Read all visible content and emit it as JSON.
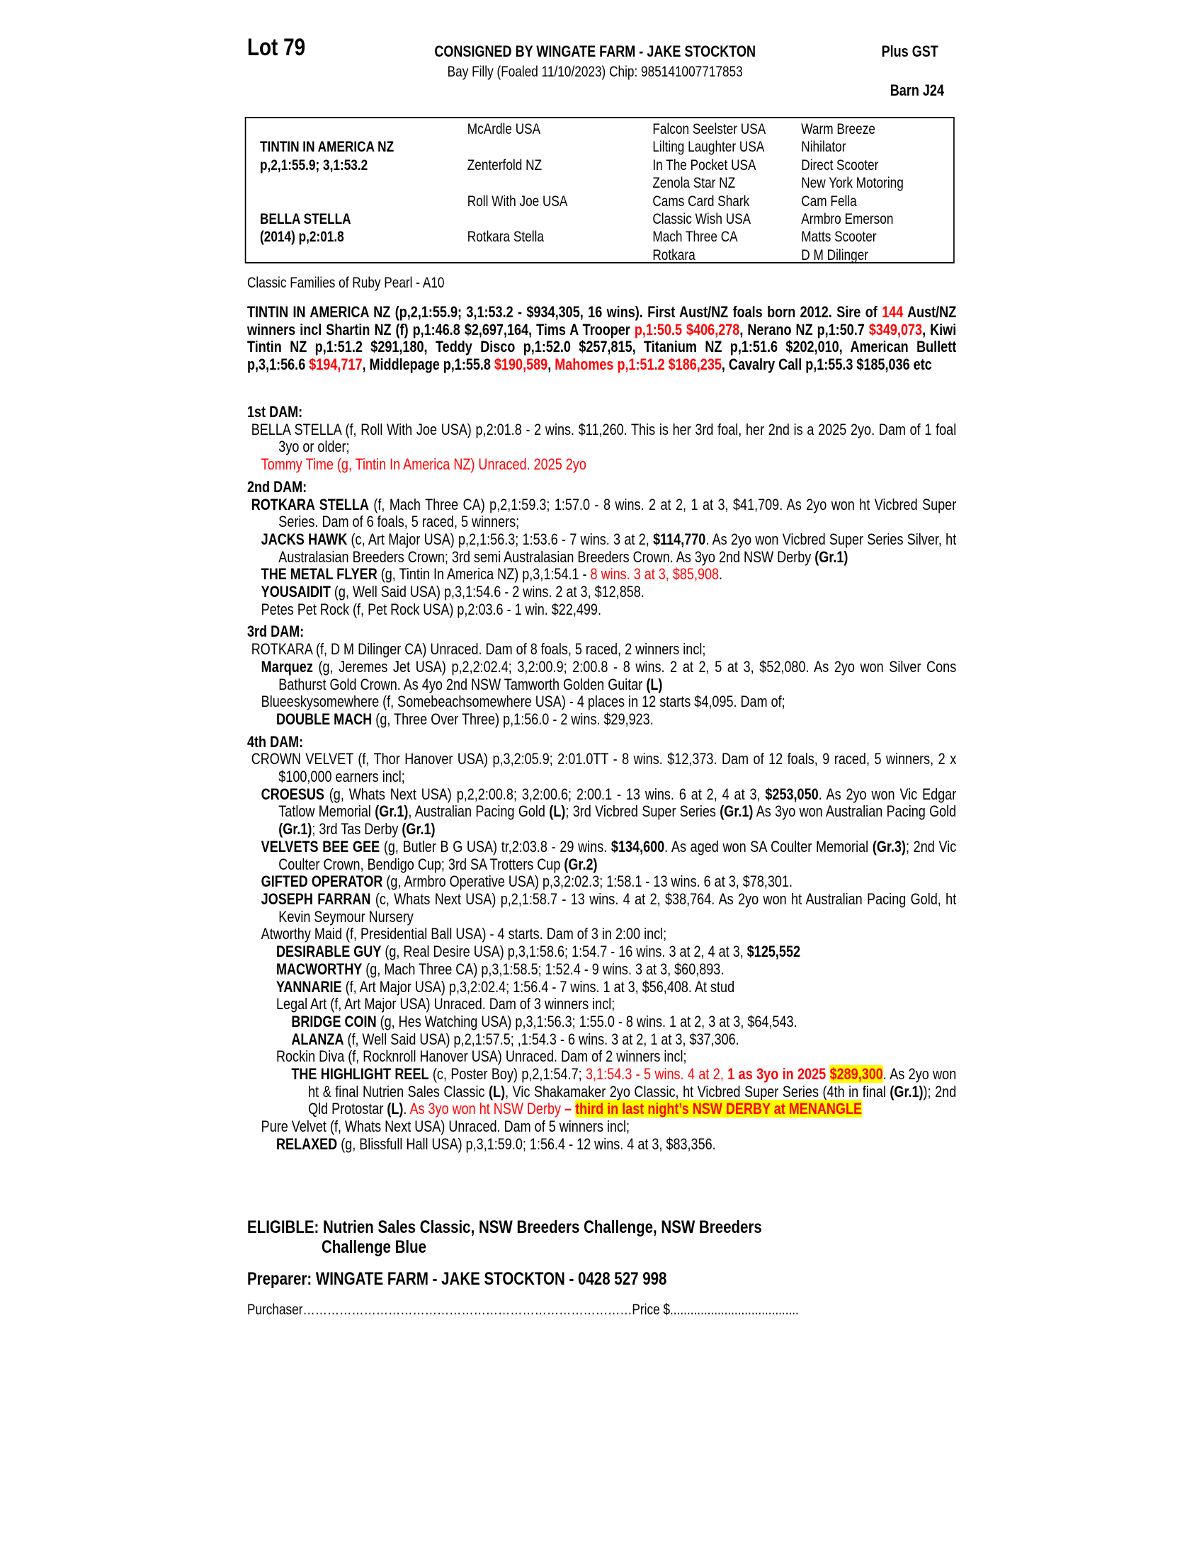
{
  "header": {
    "lot": "Lot 79",
    "consigned": "CONSIGNED BY WINGATE FARM - JAKE STOCKTON",
    "plus_gst": "Plus GST",
    "horse": "Bay Filly (Foaled 11/10/2023) Chip: 985141007717853",
    "barn": "Barn J24"
  },
  "pedigree": {
    "col1": [
      {
        "row": 1,
        "text": "TINTIN IN AMERICA NZ"
      },
      {
        "row": 2,
        "text": "p,2,1:55.9; 3,1:53.2"
      },
      {
        "row": 5,
        "text": "BELLA STELLA"
      },
      {
        "row": 6,
        "text": "(2014) p,2:01.8"
      }
    ],
    "col2": [
      {
        "row": 0,
        "text": "McArdle USA"
      },
      {
        "row": 2,
        "text": "Zenterfold NZ"
      },
      {
        "row": 4,
        "text": "Roll With Joe USA"
      },
      {
        "row": 6,
        "text": "Rotkara Stella"
      }
    ],
    "col3": [
      "Falcon Seelster USA",
      "Lilting Laughter USA",
      "In The Pocket USA",
      "Zenola Star NZ",
      "Cams Card Shark",
      "Classic Wish USA",
      "Mach Three CA",
      "Rotkara"
    ],
    "col4": [
      "Warm Breeze",
      "Nihilator",
      "Direct Scooter",
      "New York Motoring",
      "Cam Fella",
      "Armbro Emerson",
      "Matts Scooter",
      "D M Dilinger"
    ]
  },
  "classic_family": "Classic Families of Ruby Pearl - A10",
  "sire": [
    {
      "t": "TINTIN IN AMERICA NZ (p,2,1:55.9; 3,1:53.2 - $934,305, 16 wins). First Aust/NZ foals born 2012. Sire of ",
      "s": "b"
    },
    {
      "t": "144",
      "s": "rb"
    },
    {
      "t": " Aust/NZ winners incl Shartin NZ (f) p,1:46.8 $2,697,164, Tims A Trooper ",
      "s": "b"
    },
    {
      "t": "p,1:50.5 $406,278",
      "s": "rb"
    },
    {
      "t": ", Nerano NZ p,1:50.7 ",
      "s": "b"
    },
    {
      "t": "$349,073",
      "s": "rb"
    },
    {
      "t": ", Kiwi Tintin NZ p,1:51.2 $291,180, Teddy Disco p,1:52.0 $257,815, Titanium NZ p,1:51.6 $202,010, American Bullett p,3,1:56.6 ",
      "s": "b"
    },
    {
      "t": "$194,717",
      "s": "rb"
    },
    {
      "t": ", Middlepage p,1:55.8 ",
      "s": "b"
    },
    {
      "t": "$190,589",
      "s": "rb"
    },
    {
      "t": ", ",
      "s": "b"
    },
    {
      "t": "Mahomes p,1:51.2 $186,235",
      "s": "rb"
    },
    {
      "t": ", Cavalry Call p,1:55.3 $185,036  etc",
      "s": "b"
    }
  ],
  "dams": [
    {
      "heading": "1st DAM:",
      "entries": [
        {
          "level": 0,
          "segments": [
            {
              "t": "BELLA STELLA (f, Roll With Joe USA) p,2:01.8 - 2 wins. $11,260. This is her 3rd foal, her 2nd is a 2025 2yo. Dam of 1 foal 3yo or older;",
              "s": "n"
            }
          ]
        },
        {
          "level": 1,
          "segments": [
            {
              "t": "Tommy Time (g, Tintin In America NZ) Unraced. 2025 2yo",
              "s": "r"
            }
          ]
        }
      ]
    },
    {
      "heading": "2nd DAM:",
      "entries": [
        {
          "level": 0,
          "segments": [
            {
              "t": "ROTKARA STELLA",
              "s": "b"
            },
            {
              "t": " (f, Mach Three CA) p,2,1:59.3; 1:57.0 - 8 wins. 2 at 2, 1 at 3, $41,709. As 2yo won ht Vicbred Super Series. Dam of 6 foals, 5 raced, 5 winners;",
              "s": "n"
            }
          ]
        },
        {
          "level": 1,
          "segments": [
            {
              "t": "JACKS HAWK",
              "s": "b"
            },
            {
              "t": " (c, Art Major USA) p,2,1:56.3; 1:53.6 - 7 wins. 3 at 2, ",
              "s": "n"
            },
            {
              "t": "$114,770",
              "s": "b"
            },
            {
              "t": ". As 2yo won Vicbred Super Series Silver, ht Australasian Breeders Crown; 3rd semi Australasian Breeders Crown. As 3yo 2nd NSW Derby ",
              "s": "n"
            },
            {
              "t": "(Gr.1)",
              "s": "b"
            }
          ]
        },
        {
          "level": 1,
          "segments": [
            {
              "t": "THE METAL FLYER",
              "s": "b"
            },
            {
              "t": " (g, Tintin In America NZ) p,3,1:54.1 - ",
              "s": "n"
            },
            {
              "t": "8 wins. 3 at 3, $85,908",
              "s": "r"
            },
            {
              "t": ".",
              "s": "n"
            }
          ]
        },
        {
          "level": 1,
          "segments": [
            {
              "t": "YOUSAIDIT",
              "s": "b"
            },
            {
              "t": " (g, Well Said USA) p,3,1:54.6 - 2 wins. 2 at 3, $12,858.",
              "s": "n"
            }
          ]
        },
        {
          "level": 1,
          "segments": [
            {
              "t": "Petes Pet Rock (f, Pet Rock USA) p,2:03.6 - 1 win. $22,499.",
              "s": "n"
            }
          ]
        }
      ]
    },
    {
      "heading": "3rd DAM:",
      "entries": [
        {
          "level": 0,
          "segments": [
            {
              "t": "ROTKARA (f, D M Dilinger CA) Unraced. Dam of 8 foals, 5 raced, 2 winners incl;",
              "s": "n"
            }
          ]
        },
        {
          "level": 1,
          "segments": [
            {
              "t": "Marquez",
              "s": "b"
            },
            {
              "t": " (g, Jeremes Jet USA) p,2,2:02.4; 3,2:00.9; 2:00.8 - 8 wins. 2 at 2, 5 at 3, $52,080. As 2yo won Silver Cons Bathurst Gold Crown. As 4yo 2nd NSW Tamworth Golden Guitar ",
              "s": "n"
            },
            {
              "t": "(L)",
              "s": "b"
            }
          ]
        },
        {
          "level": 1,
          "segments": [
            {
              "t": "Blueeskysomewhere (f, Somebeachsomewhere USA) - 4 places in 12 starts $4,095. Dam of;",
              "s": "n"
            }
          ]
        },
        {
          "level": 2,
          "segments": [
            {
              "t": "DOUBLE MACH",
              "s": "b"
            },
            {
              "t": " (g, Three Over Three) p,1:56.0 - 2 wins. $29,923.",
              "s": "n"
            }
          ]
        }
      ]
    },
    {
      "heading": "4th DAM:",
      "entries": [
        {
          "level": 0,
          "segments": [
            {
              "t": "CROWN VELVET (f, Thor Hanover USA) p,3,2:05.9; 2:01.0TT - 8 wins. $12,373. Dam of 12 foals, 9 raced, 5 winners, 2 x $100,000 earners incl;",
              "s": "n"
            }
          ]
        },
        {
          "level": 1,
          "segments": [
            {
              "t": "CROESUS",
              "s": "b"
            },
            {
              "t": " (g, Whats Next USA) p,2,2:00.8; 3,2:00.6; 2:00.1 - 13 wins. 6 at 2, 4 at 3, ",
              "s": "n"
            },
            {
              "t": "$253,050",
              "s": "b"
            },
            {
              "t": ". As 2yo won Vic Edgar Tatlow Memorial ",
              "s": "n"
            },
            {
              "t": "(Gr.1)",
              "s": "b"
            },
            {
              "t": ", Australian Pacing Gold ",
              "s": "n"
            },
            {
              "t": "(L)",
              "s": "b"
            },
            {
              "t": "; 3rd Vicbred Super Series ",
              "s": "n"
            },
            {
              "t": "(Gr.1)",
              "s": "b"
            },
            {
              "t": " As 3yo won Australian Pacing Gold ",
              "s": "n"
            },
            {
              "t": "(Gr.1)",
              "s": "b"
            },
            {
              "t": "; 3rd Tas Derby ",
              "s": "n"
            },
            {
              "t": "(Gr.1)",
              "s": "b"
            }
          ]
        },
        {
          "level": 1,
          "segments": [
            {
              "t": "VELVETS BEE GEE",
              "s": "b"
            },
            {
              "t": " (g, Butler B G USA) tr,2:03.8 - 29 wins. ",
              "s": "n"
            },
            {
              "t": "$134,600",
              "s": "b"
            },
            {
              "t": ". As aged won SA Coulter Memorial ",
              "s": "n"
            },
            {
              "t": "(Gr.3)",
              "s": "b"
            },
            {
              "t": "; 2nd Vic Coulter Crown, Bendigo Cup; 3rd SA Trotters Cup ",
              "s": "n"
            },
            {
              "t": "(Gr.2)",
              "s": "b"
            }
          ]
        },
        {
          "level": 1,
          "segments": [
            {
              "t": "GIFTED OPERATOR",
              "s": "b"
            },
            {
              "t": " (g, Armbro Operative USA) p,3,2:02.3; 1:58.1 - 13 wins. 6 at 3, $78,301.",
              "s": "n"
            }
          ]
        },
        {
          "level": 1,
          "segments": [
            {
              "t": "JOSEPH FARRAN",
              "s": "b"
            },
            {
              "t": " (c, Whats Next USA) p,2,1:58.7 - 13 wins. 4 at 2, $38,764. As 2yo won ht Australian Pacing Gold, ht Kevin Seymour Nursery",
              "s": "n"
            }
          ]
        },
        {
          "level": 1,
          "segments": [
            {
              "t": "Atworthy Maid (f, Presidential Ball USA) - 4 starts. Dam of 3 in 2:00 incl;",
              "s": "n"
            }
          ]
        },
        {
          "level": 2,
          "segments": [
            {
              "t": "DESIRABLE GUY",
              "s": "b"
            },
            {
              "t": " (g, Real Desire USA) p,3,1:58.6; 1:54.7 - 16 wins. 3 at 2, 4 at 3, ",
              "s": "n"
            },
            {
              "t": "$125,552",
              "s": "b"
            }
          ]
        },
        {
          "level": 2,
          "segments": [
            {
              "t": "MACWORTHY",
              "s": "b"
            },
            {
              "t": " (g, Mach Three CA) p,3,1:58.5; 1:52.4 - 9 wins. 3 at 3, $60,893.",
              "s": "n"
            }
          ]
        },
        {
          "level": 2,
          "segments": [
            {
              "t": "YANNARIE",
              "s": "b"
            },
            {
              "t": " (f, Art Major USA) p,3,2:02.4; 1:56.4 - 7 wins. 1 at 3, $56,408. At stud",
              "s": "n"
            }
          ]
        },
        {
          "level": 2,
          "segments": [
            {
              "t": "Legal Art (f, Art Major USA) Unraced. Dam of 3 winners incl;",
              "s": "n"
            }
          ]
        },
        {
          "level": 3,
          "segments": [
            {
              "t": "BRIDGE COIN",
              "s": "b"
            },
            {
              "t": " (g, Hes Watching USA) p,3,1:56.3; 1:55.0 - 8 wins. 1 at 2, 3 at 3, $64,543.",
              "s": "n"
            }
          ]
        },
        {
          "level": 3,
          "segments": [
            {
              "t": "ALANZA",
              "s": "b"
            },
            {
              "t": " (f, Well Said USA) p,2,1:57.5; ,1:54.3 - 6 wins. 3 at 2, 1 at 3, $37,306.",
              "s": "n"
            }
          ]
        },
        {
          "level": 2,
          "segments": [
            {
              "t": "Rockin Diva (f, Rocknroll Hanover USA) Unraced. Dam of 2 winners incl;",
              "s": "n"
            }
          ]
        },
        {
          "level": 3,
          "segments": [
            {
              "t": "THE HIGHLIGHT REEL",
              "s": "b"
            },
            {
              "t": " (c, Poster Boy) p,2,1:54.7; ",
              "s": "n"
            },
            {
              "t": "3,1:54.3 - 5 wins. 4 at 2, ",
              "s": "r"
            },
            {
              "t": "1 as 3yo in 2025 ",
              "s": "rb"
            },
            {
              "t": "$289,300",
              "s": "hl"
            },
            {
              "t": ". As 2yo won ht & final Nutrien Sales Classic ",
              "s": "n"
            },
            {
              "t": "(L)",
              "s": "b"
            },
            {
              "t": ", Vic Shakamaker 2yo Classic, ht Vicbred Super Series (4th in final ",
              "s": "n"
            },
            {
              "t": "(Gr.1)",
              "s": "b"
            },
            {
              "t": "); 2nd Qld Protostar ",
              "s": "n"
            },
            {
              "t": "(L)",
              "s": "b"
            },
            {
              "t": ". ",
              "s": "n"
            },
            {
              "t": "As 3yo won ht NSW Derby ",
              "s": "r"
            },
            {
              "t": "– ",
              "s": "rb"
            },
            {
              "t": "third in last night’s NSW DERBY at MENANGLE",
              "s": "hl"
            }
          ]
        },
        {
          "level": 1,
          "segments": [
            {
              "t": "Pure Velvet (f, Whats Next USA) Unraced. Dam of 5 winners incl;",
              "s": "n"
            }
          ]
        },
        {
          "level": 2,
          "segments": [
            {
              "t": "RELAXED",
              "s": "b"
            },
            {
              "t": " (g, Blissfull Hall USA) p,3,1:59.0; 1:56.4 - 12 wins. 4 at 3, $83,356.",
              "s": "n"
            }
          ]
        }
      ]
    }
  ],
  "eligible": {
    "line1": "ELIGIBLE: Nutrien Sales Classic, NSW Breeders Challenge, NSW Breeders",
    "line2": "Challenge Blue"
  },
  "preparer": "Preparer: WINGATE FARM - JAKE STOCKTON - 0428 527 998",
  "purchaser": {
    "label": "Purchaser",
    "dots1": "………………………………………………………………………",
    "price_label": "Price $",
    "dots2": "......................................"
  },
  "colors": {
    "highlight_red": "#ff0000",
    "highlight_yellow": "#ffff00"
  }
}
